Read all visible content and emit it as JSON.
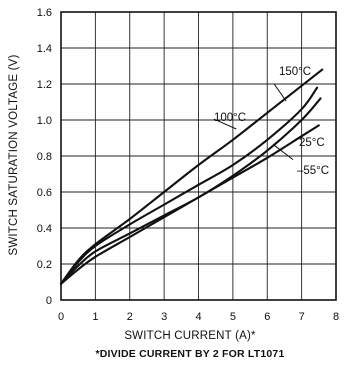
{
  "chart_data": {
    "type": "line",
    "title": "",
    "xlabel": "SWITCH CURRENT (A)*",
    "ylabel": "SWITCH SATURATION VOLTAGE (V)",
    "footnote": "*DIVIDE CURRENT BY 2 FOR LT1071",
    "xlim": [
      0,
      8
    ],
    "ylim": [
      0,
      1.6
    ],
    "x_ticks": [
      0,
      1,
      2,
      3,
      4,
      5,
      6,
      7,
      8
    ],
    "x_tick_labels": [
      "0",
      "1",
      "2",
      "3",
      "4",
      "5",
      "6",
      "7",
      "8"
    ],
    "y_ticks": [
      0,
      0.2,
      0.4,
      0.6,
      0.8,
      1.0,
      1.2,
      1.4,
      1.6
    ],
    "y_tick_labels": [
      "0",
      "0.2",
      "0.4",
      "0.6",
      "0.8",
      "1.0",
      "1.2",
      "1.4",
      "1.6"
    ],
    "grid": true,
    "series": [
      {
        "name": "150°C",
        "points": [
          [
            0,
            0.09
          ],
          [
            0.5,
            0.22
          ],
          [
            1,
            0.31
          ],
          [
            2,
            0.45
          ],
          [
            3,
            0.6
          ],
          [
            4,
            0.75
          ],
          [
            5,
            0.89
          ],
          [
            6,
            1.04
          ],
          [
            7,
            1.19
          ],
          [
            7.6,
            1.28
          ]
        ]
      },
      {
        "name": "100°C",
        "points": [
          [
            0,
            0.09
          ],
          [
            0.5,
            0.21
          ],
          [
            1,
            0.3
          ],
          [
            2,
            0.42
          ],
          [
            3,
            0.53
          ],
          [
            4,
            0.64
          ],
          [
            5,
            0.75
          ],
          [
            6,
            0.89
          ],
          [
            7,
            1.06
          ],
          [
            7.45,
            1.18
          ]
        ]
      },
      {
        "name": "25°C",
        "points": [
          [
            0,
            0.09
          ],
          [
            0.5,
            0.19
          ],
          [
            1,
            0.27
          ],
          [
            2,
            0.37
          ],
          [
            3,
            0.47
          ],
          [
            4,
            0.57
          ],
          [
            5,
            0.69
          ],
          [
            6,
            0.83
          ],
          [
            7,
            1.0
          ],
          [
            7.55,
            1.12
          ]
        ]
      },
      {
        "name": "–55°C",
        "points": [
          [
            0,
            0.09
          ],
          [
            0.5,
            0.17
          ],
          [
            1,
            0.24
          ],
          [
            2,
            0.35
          ],
          [
            3,
            0.46
          ],
          [
            4,
            0.57
          ],
          [
            5,
            0.68
          ],
          [
            6,
            0.79
          ],
          [
            7,
            0.91
          ],
          [
            7.5,
            0.97
          ]
        ]
      }
    ]
  }
}
